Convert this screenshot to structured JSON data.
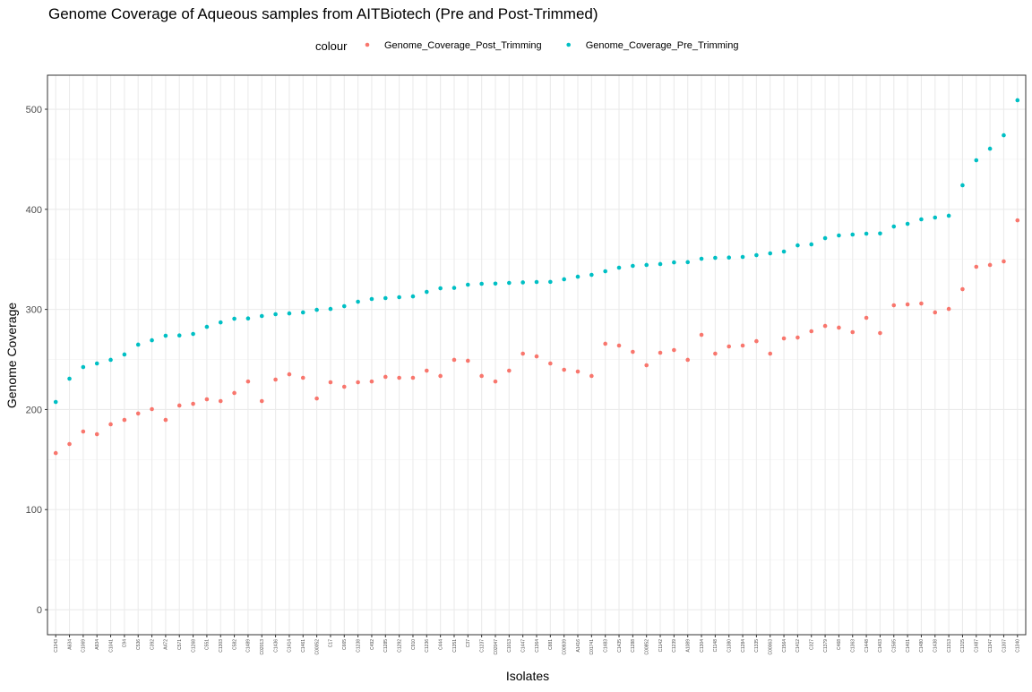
{
  "chart_data": {
    "type": "scatter",
    "title": "Genome Coverage of Aqueous samples from AITBiotech (Pre and Post-Trimmed)",
    "x_label": "Isolates",
    "y_label": "Genome Coverage",
    "legend_title": "colour",
    "legend_position": "top",
    "grid": true,
    "categories": [
      "C1343",
      "A634",
      "C1069",
      "A934",
      "C1041",
      "C94",
      "C536",
      "C392",
      "A472",
      "C571",
      "C1268",
      "C551",
      "C1303",
      "C582",
      "C1489",
      "C02013",
      "C1436",
      "C1414",
      "C1461",
      "C00052",
      "C17",
      "C665",
      "C1238",
      "C492",
      "C1285",
      "C1292",
      "C910",
      "C1236",
      "C444",
      "C1351",
      "C37",
      "C1237",
      "C02047",
      "C1013",
      "C1447",
      "C1364",
      "C881",
      "C00939",
      "A1416",
      "C01741",
      "C1483",
      "C1435",
      "C1288",
      "C00852",
      "C1142",
      "C1239",
      "A1089",
      "C1304",
      "C1148",
      "C1380",
      "C1284",
      "C1335",
      "C00063",
      "C1564",
      "C1412",
      "C327",
      "C1379",
      "C468",
      "C1363",
      "C1448",
      "C1403",
      "C1565",
      "C1401",
      "C1480",
      "C1438",
      "C1313",
      "C1315",
      "C1487",
      "C1347",
      "C1307",
      "C1340"
    ],
    "series": [
      {
        "name": "Genome_Coverage_Post_Trimming",
        "color": "#F8766D",
        "values": [
          156.5,
          165.5,
          178,
          175.3,
          185.2,
          189.6,
          196,
          200.4,
          189.6,
          204,
          205.7,
          210.2,
          208.4,
          216.5,
          228,
          208.4,
          229.9,
          235.2,
          231.7,
          211,
          227.2,
          222.7,
          227.2,
          228,
          232.6,
          231.7,
          231.7,
          238.8,
          233.5,
          249.6,
          248.7,
          233.5,
          228,
          238.8,
          255.8,
          253.1,
          246,
          239.7,
          237.9,
          233.5,
          265.7,
          263.9,
          257.6,
          244.2,
          256.7,
          259.4,
          249.6,
          274.6,
          255.8,
          263,
          263.9,
          268.3,
          255.8,
          271,
          271.9,
          278.2,
          283.5,
          281.8,
          277.3,
          291.6,
          276.4,
          304.1,
          305,
          305.9,
          297,
          300.5,
          320.2,
          342.6,
          344.4,
          348,
          389
        ]
      },
      {
        "name": "Genome_Coverage_Pre_Trimming",
        "color": "#00BFC4",
        "values": [
          207.5,
          230.8,
          242.4,
          246,
          249.6,
          255,
          264.8,
          269.2,
          273.7,
          274,
          275.5,
          282.6,
          287,
          290.7,
          291,
          293.4,
          295.2,
          296,
          297,
          299.6,
          300.5,
          303.2,
          307.7,
          310.4,
          311.3,
          312.2,
          313,
          317.5,
          321.1,
          321.5,
          324.7,
          325.6,
          325.8,
          326.5,
          327,
          327.4,
          327.5,
          330.1,
          332.7,
          334.5,
          338.1,
          341.7,
          343.5,
          344.4,
          345.3,
          347,
          347.2,
          350.6,
          351.5,
          351.8,
          352.4,
          354.2,
          356,
          357.8,
          364,
          365,
          371.2,
          373.9,
          374.8,
          375.7,
          375.9,
          382.8,
          385.5,
          390,
          391.8,
          393.6,
          424,
          449,
          460.6,
          474,
          509
        ]
      }
    ],
    "ylim": [
      -25,
      534
    ],
    "yticks": [
      0,
      100,
      200,
      300,
      400,
      500
    ]
  }
}
